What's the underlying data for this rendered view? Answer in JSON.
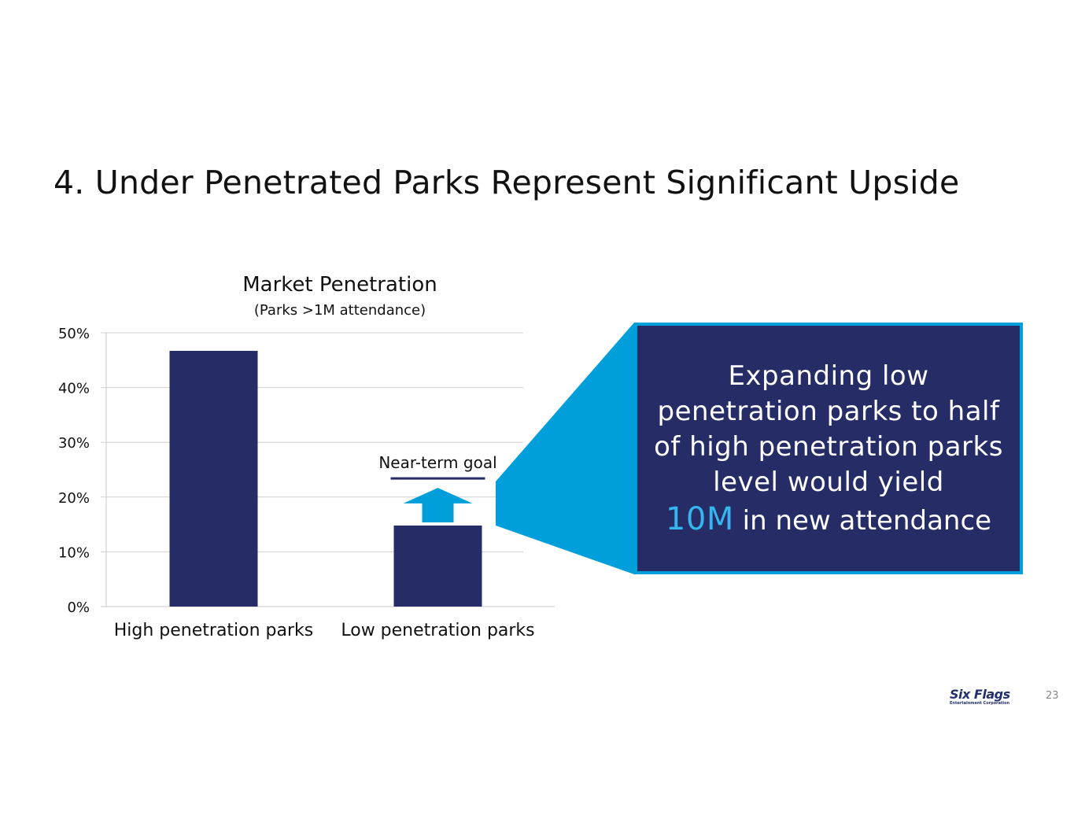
{
  "slide": {
    "title": "4. Under Penetrated Parks Represent Significant Upside",
    "page_number": "23"
  },
  "logo": {
    "name": "Six Flags",
    "tagline": "Entertainment Corporation"
  },
  "callout": {
    "text": "Expanding low penetration parks to half of high penetration parks level would yield",
    "highlight": "10M",
    "tail": " in new attendance"
  },
  "colors": {
    "bar": "#252c66",
    "callout_bg": "#252c66",
    "callout_border": "#009fdb",
    "arrow": "#009fdb",
    "highlight": "#35b6ee"
  },
  "chart_data": {
    "type": "bar",
    "title": "Market Penetration",
    "subtitle": "(Parks >1M attendance)",
    "categories": [
      "High penetration parks",
      "Low penetration parks"
    ],
    "values": [
      46.7,
      14.8
    ],
    "ylim": [
      0,
      50
    ],
    "yticks": [
      "0%",
      "10%",
      "20%",
      "30%",
      "40%",
      "50%"
    ],
    "grid": true,
    "annotation": {
      "label": "Near-term goal",
      "value": 23.4,
      "category": "Low penetration parks"
    }
  }
}
